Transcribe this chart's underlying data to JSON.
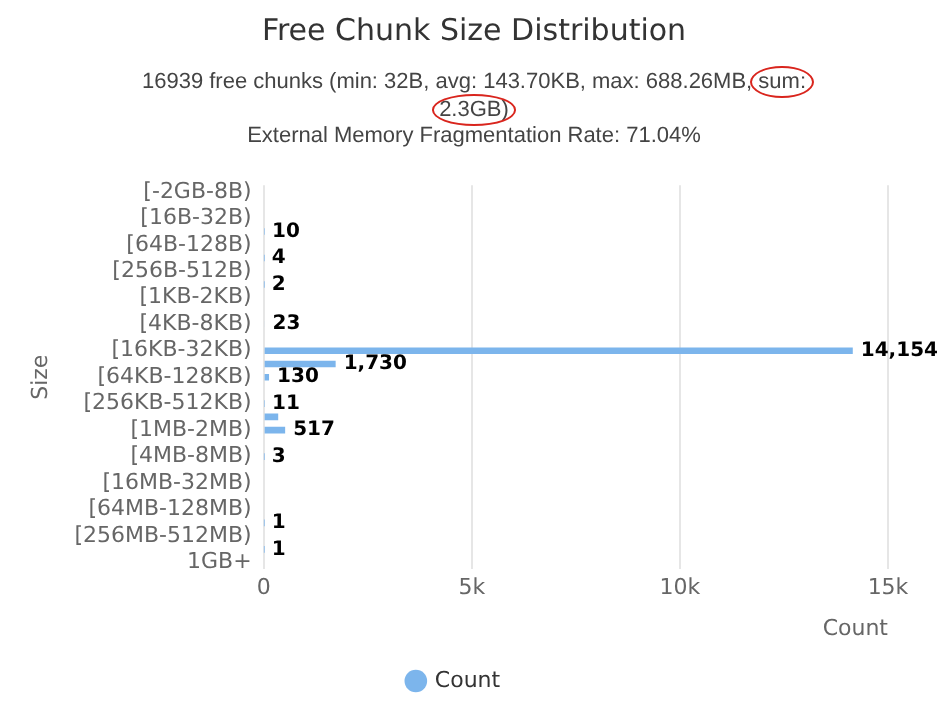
{
  "chart_data": {
    "type": "bar",
    "orientation": "horizontal",
    "title": "Free Chunk Size Distribution",
    "subtitle": "16939 free chunks (min: 32B, avg: 143.70KB, max: 688.26MB, sum: 2.3GB)",
    "annotations": [
      "External Memory Fragmentation Rate: 71.04%"
    ],
    "xlabel": "Count",
    "ylabel": "Size",
    "categories": [
      "[-2GB-8B)",
      null,
      "[16B-32B)",
      null,
      "[64B-128B)",
      null,
      "[256B-512B)",
      null,
      "[1KB-2KB)",
      null,
      "[4KB-8KB)",
      null,
      "[16KB-32KB)",
      null,
      "[64KB-128KB)",
      null,
      "[256KB-512KB)",
      null,
      "[1MB-2MB)",
      null,
      "[4MB-8MB)",
      null,
      "[16MB-32MB)",
      null,
      "[64MB-128MB)",
      null,
      "[256MB-512MB)",
      null,
      "1GB+"
    ],
    "series": [
      {
        "name": "Count",
        "color": "#7cb5ec",
        "values": [
          0,
          0,
          0,
          10,
          0,
          4,
          0,
          2,
          0,
          0,
          23,
          0,
          14154,
          1730,
          130,
          0,
          11,
          350,
          517,
          0,
          3,
          0,
          0,
          0,
          0,
          1,
          0,
          1,
          0
        ],
        "value_labels": [
          null,
          null,
          null,
          "10",
          null,
          "4",
          null,
          "2",
          null,
          null,
          "23",
          null,
          "14,154",
          "1,730",
          "130",
          null,
          "11",
          null,
          "517",
          null,
          "3",
          null,
          null,
          null,
          null,
          "1",
          null,
          "1",
          null
        ]
      }
    ],
    "xlim": [
      0,
      15000
    ],
    "xticks": [
      {
        "value": 0,
        "label": "0"
      },
      {
        "value": 5000,
        "label": "5k"
      },
      {
        "value": 10000,
        "label": "10k"
      },
      {
        "value": 15000,
        "label": "15k"
      }
    ],
    "grid": "x",
    "legend": "bottom"
  }
}
